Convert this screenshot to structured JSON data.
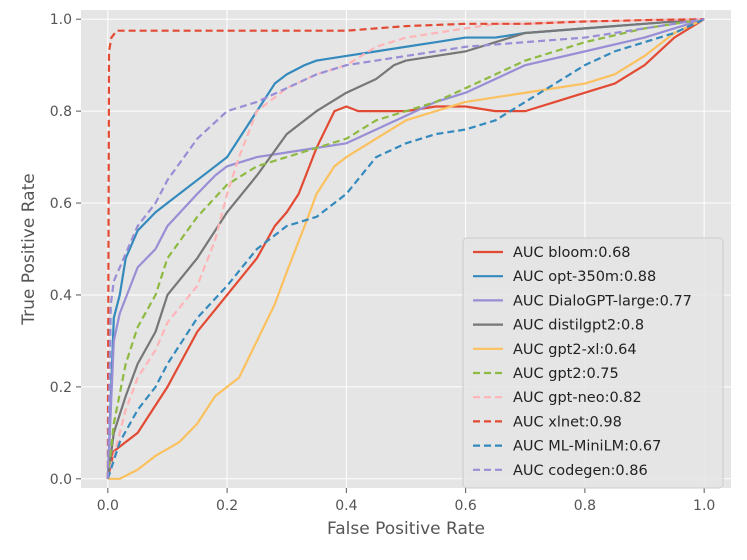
{
  "chart_data": {
    "type": "line",
    "title": "",
    "xlabel": "False Positive Rate",
    "ylabel": "True Positive Rate",
    "xlim": [
      -0.045,
      1.045
    ],
    "ylim": [
      -0.02,
      1.02
    ],
    "xticks": [
      0.0,
      0.2,
      0.4,
      0.6,
      0.8,
      1.0
    ],
    "yticks": [
      0.0,
      0.2,
      0.4,
      0.6,
      0.8,
      1.0
    ],
    "xtick_labels": [
      "0.0",
      "0.2",
      "0.4",
      "0.6",
      "0.8",
      "1.0"
    ],
    "ytick_labels": [
      "0.0",
      "0.2",
      "0.4",
      "0.6",
      "0.8",
      "1.0"
    ],
    "grid": true,
    "legend_position": "lower-right",
    "series": [
      {
        "name": "AUC bloom:0.68",
        "color": "#E24A33",
        "dash": "solid",
        "x": [
          0.0,
          0.01,
          0.02,
          0.05,
          0.1,
          0.15,
          0.2,
          0.25,
          0.28,
          0.3,
          0.32,
          0.35,
          0.38,
          0.4,
          0.42,
          0.45,
          0.5,
          0.55,
          0.6,
          0.65,
          0.7,
          0.75,
          0.8,
          0.85,
          0.9,
          0.95,
          1.0
        ],
        "y": [
          0.0,
          0.06,
          0.07,
          0.1,
          0.2,
          0.32,
          0.4,
          0.48,
          0.55,
          0.58,
          0.62,
          0.72,
          0.8,
          0.81,
          0.8,
          0.8,
          0.8,
          0.81,
          0.81,
          0.8,
          0.8,
          0.82,
          0.84,
          0.86,
          0.9,
          0.96,
          1.0
        ]
      },
      {
        "name": "AUC opt-350m:0.88",
        "color": "#348ABD",
        "dash": "solid",
        "x": [
          0.0,
          0.01,
          0.02,
          0.03,
          0.05,
          0.08,
          0.1,
          0.15,
          0.2,
          0.25,
          0.28,
          0.3,
          0.33,
          0.35,
          0.4,
          0.45,
          0.5,
          0.55,
          0.6,
          0.65,
          0.7,
          0.8,
          0.9,
          1.0
        ],
        "y": [
          0.0,
          0.35,
          0.4,
          0.48,
          0.54,
          0.58,
          0.6,
          0.65,
          0.7,
          0.8,
          0.86,
          0.88,
          0.9,
          0.91,
          0.92,
          0.93,
          0.94,
          0.95,
          0.96,
          0.96,
          0.97,
          0.98,
          0.99,
          1.0
        ]
      },
      {
        "name": "AUC DialoGPT-large:0.77",
        "color": "#988ED5",
        "dash": "solid",
        "x": [
          0.0,
          0.01,
          0.02,
          0.05,
          0.08,
          0.1,
          0.15,
          0.18,
          0.2,
          0.25,
          0.3,
          0.35,
          0.4,
          0.45,
          0.5,
          0.55,
          0.6,
          0.65,
          0.7,
          0.8,
          0.9,
          1.0
        ],
        "y": [
          0.0,
          0.3,
          0.36,
          0.46,
          0.5,
          0.55,
          0.62,
          0.66,
          0.68,
          0.7,
          0.71,
          0.72,
          0.73,
          0.76,
          0.79,
          0.82,
          0.84,
          0.87,
          0.9,
          0.93,
          0.96,
          1.0
        ]
      },
      {
        "name": "AUC distilgpt2:0.8",
        "color": "#777777",
        "dash": "solid",
        "x": [
          0.0,
          0.01,
          0.03,
          0.05,
          0.08,
          0.1,
          0.15,
          0.2,
          0.25,
          0.3,
          0.35,
          0.4,
          0.45,
          0.48,
          0.5,
          0.55,
          0.6,
          0.65,
          0.7,
          0.8,
          0.9,
          1.0
        ],
        "y": [
          0.0,
          0.1,
          0.18,
          0.25,
          0.32,
          0.4,
          0.48,
          0.58,
          0.66,
          0.75,
          0.8,
          0.84,
          0.87,
          0.9,
          0.91,
          0.92,
          0.93,
          0.95,
          0.97,
          0.98,
          0.99,
          1.0
        ]
      },
      {
        "name": "AUC gpt2-xl:0.64",
        "color": "#FBC15E",
        "dash": "solid",
        "x": [
          0.0,
          0.02,
          0.05,
          0.08,
          0.12,
          0.15,
          0.18,
          0.2,
          0.22,
          0.25,
          0.28,
          0.3,
          0.33,
          0.35,
          0.38,
          0.4,
          0.45,
          0.5,
          0.55,
          0.6,
          0.65,
          0.7,
          0.75,
          0.8,
          0.85,
          0.9,
          0.95,
          1.0
        ],
        "y": [
          0.0,
          0.0,
          0.02,
          0.05,
          0.08,
          0.12,
          0.18,
          0.2,
          0.22,
          0.3,
          0.38,
          0.45,
          0.55,
          0.62,
          0.68,
          0.7,
          0.74,
          0.78,
          0.8,
          0.82,
          0.83,
          0.84,
          0.85,
          0.86,
          0.88,
          0.92,
          0.97,
          1.0
        ]
      },
      {
        "name": "AUC gpt2:0.75",
        "color": "#8EBA42",
        "dash": "dashed",
        "x": [
          0.0,
          0.01,
          0.03,
          0.05,
          0.08,
          0.1,
          0.15,
          0.2,
          0.25,
          0.3,
          0.35,
          0.4,
          0.45,
          0.5,
          0.55,
          0.6,
          0.65,
          0.7,
          0.8,
          0.9,
          1.0
        ],
        "y": [
          0.0,
          0.12,
          0.25,
          0.33,
          0.4,
          0.48,
          0.57,
          0.64,
          0.68,
          0.7,
          0.72,
          0.74,
          0.78,
          0.8,
          0.82,
          0.85,
          0.88,
          0.91,
          0.95,
          0.98,
          1.0
        ]
      },
      {
        "name": "AUC gpt-neo:0.82",
        "color": "#FFB5B8",
        "dash": "dashed",
        "x": [
          0.0,
          0.01,
          0.03,
          0.05,
          0.08,
          0.1,
          0.15,
          0.18,
          0.2,
          0.22,
          0.25,
          0.3,
          0.35,
          0.4,
          0.45,
          0.5,
          0.55,
          0.6,
          0.65,
          0.7,
          0.8,
          0.9,
          1.0
        ],
        "y": [
          0.0,
          0.05,
          0.15,
          0.22,
          0.28,
          0.34,
          0.42,
          0.52,
          0.62,
          0.7,
          0.8,
          0.85,
          0.88,
          0.9,
          0.94,
          0.96,
          0.97,
          0.98,
          0.99,
          0.99,
          0.995,
          0.998,
          1.0
        ]
      },
      {
        "name": "AUC xlnet:0.98",
        "color": "#E24A33",
        "dash": "dashed",
        "x": [
          0.0,
          0.002,
          0.006,
          0.015,
          0.4,
          0.45,
          0.5,
          0.6,
          0.7,
          0.8,
          0.9,
          1.0
        ],
        "y": [
          0.0,
          0.93,
          0.96,
          0.975,
          0.975,
          0.98,
          0.985,
          0.99,
          0.99,
          0.995,
          0.998,
          1.0
        ]
      },
      {
        "name": "AUC ML-MiniLM:0.67",
        "color": "#348ABD",
        "dash": "dashed",
        "x": [
          0.0,
          0.02,
          0.05,
          0.08,
          0.1,
          0.15,
          0.2,
          0.25,
          0.28,
          0.3,
          0.35,
          0.4,
          0.45,
          0.5,
          0.55,
          0.6,
          0.65,
          0.7,
          0.75,
          0.8,
          0.85,
          0.9,
          0.95,
          1.0
        ],
        "y": [
          0.0,
          0.08,
          0.15,
          0.2,
          0.25,
          0.35,
          0.42,
          0.5,
          0.53,
          0.55,
          0.57,
          0.62,
          0.7,
          0.73,
          0.75,
          0.76,
          0.78,
          0.82,
          0.86,
          0.9,
          0.93,
          0.95,
          0.97,
          1.0
        ]
      },
      {
        "name": "AUC codegen:0.86",
        "color": "#988ED5",
        "dash": "dashed",
        "x": [
          0.0,
          0.005,
          0.01,
          0.02,
          0.05,
          0.08,
          0.1,
          0.15,
          0.2,
          0.25,
          0.3,
          0.35,
          0.4,
          0.45,
          0.5,
          0.55,
          0.6,
          0.7,
          0.8,
          0.9,
          1.0
        ],
        "y": [
          0.0,
          0.38,
          0.43,
          0.46,
          0.55,
          0.6,
          0.65,
          0.74,
          0.8,
          0.82,
          0.85,
          0.88,
          0.9,
          0.91,
          0.92,
          0.93,
          0.94,
          0.95,
          0.96,
          0.98,
          1.0
        ]
      }
    ]
  }
}
